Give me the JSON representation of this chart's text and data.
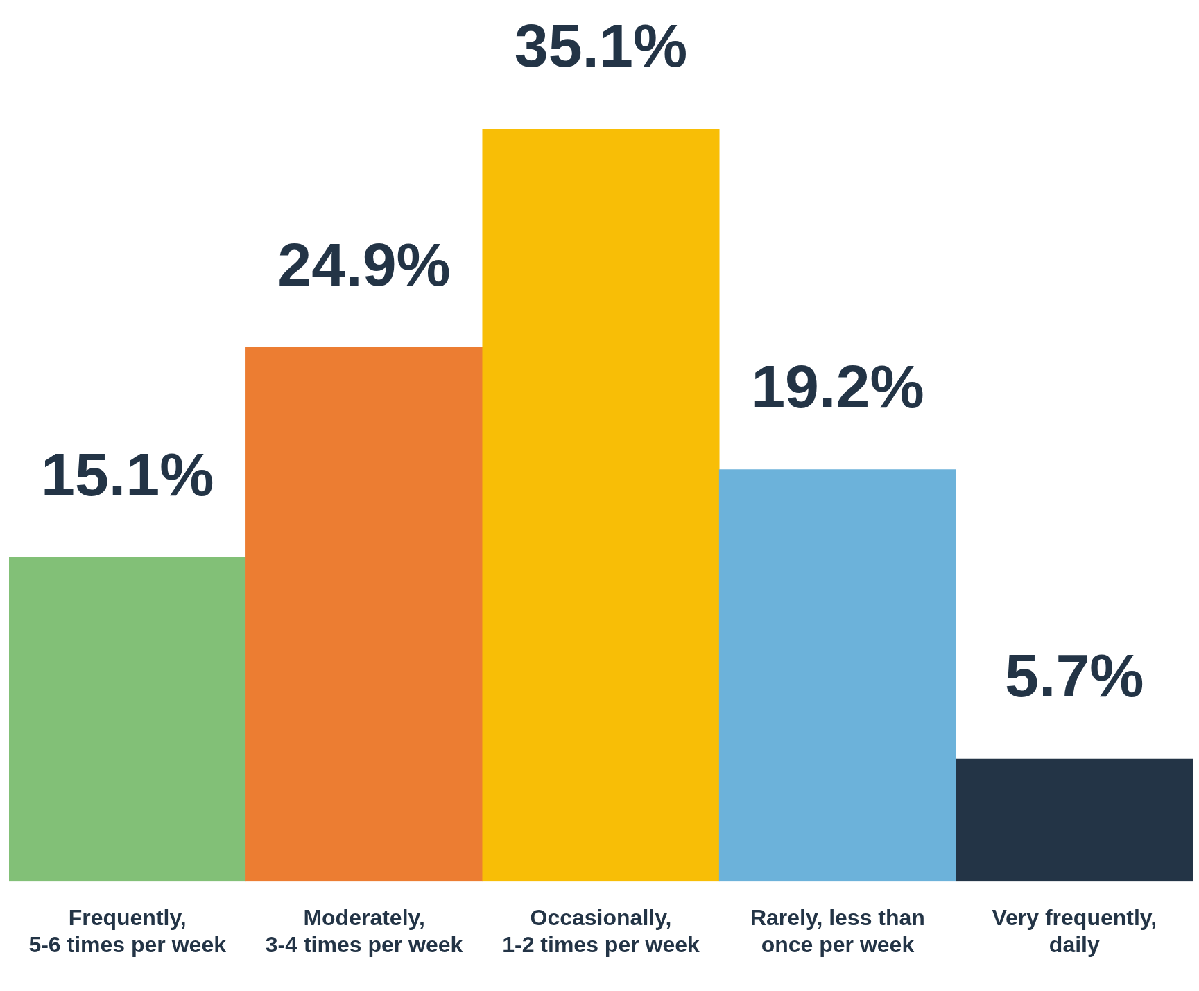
{
  "chart_data": {
    "type": "bar",
    "categories": [
      "Frequently,\n5-6 times per week",
      "Moderately,\n3-4 times per week",
      "Occasionally,\n1-2 times per week",
      "Rarely, less than\nonce per week",
      "Very frequently,\ndaily"
    ],
    "values": [
      15.1,
      24.9,
      35.1,
      19.2,
      5.7
    ],
    "colors": [
      "#82c077",
      "#ec7d32",
      "#f8be06",
      "#6cb2da",
      "#233446"
    ],
    "value_labels": [
      "15.1%",
      "24.9%",
      "35.1%",
      "19.2%",
      "5.7%"
    ],
    "grid": false,
    "legend": false
  }
}
